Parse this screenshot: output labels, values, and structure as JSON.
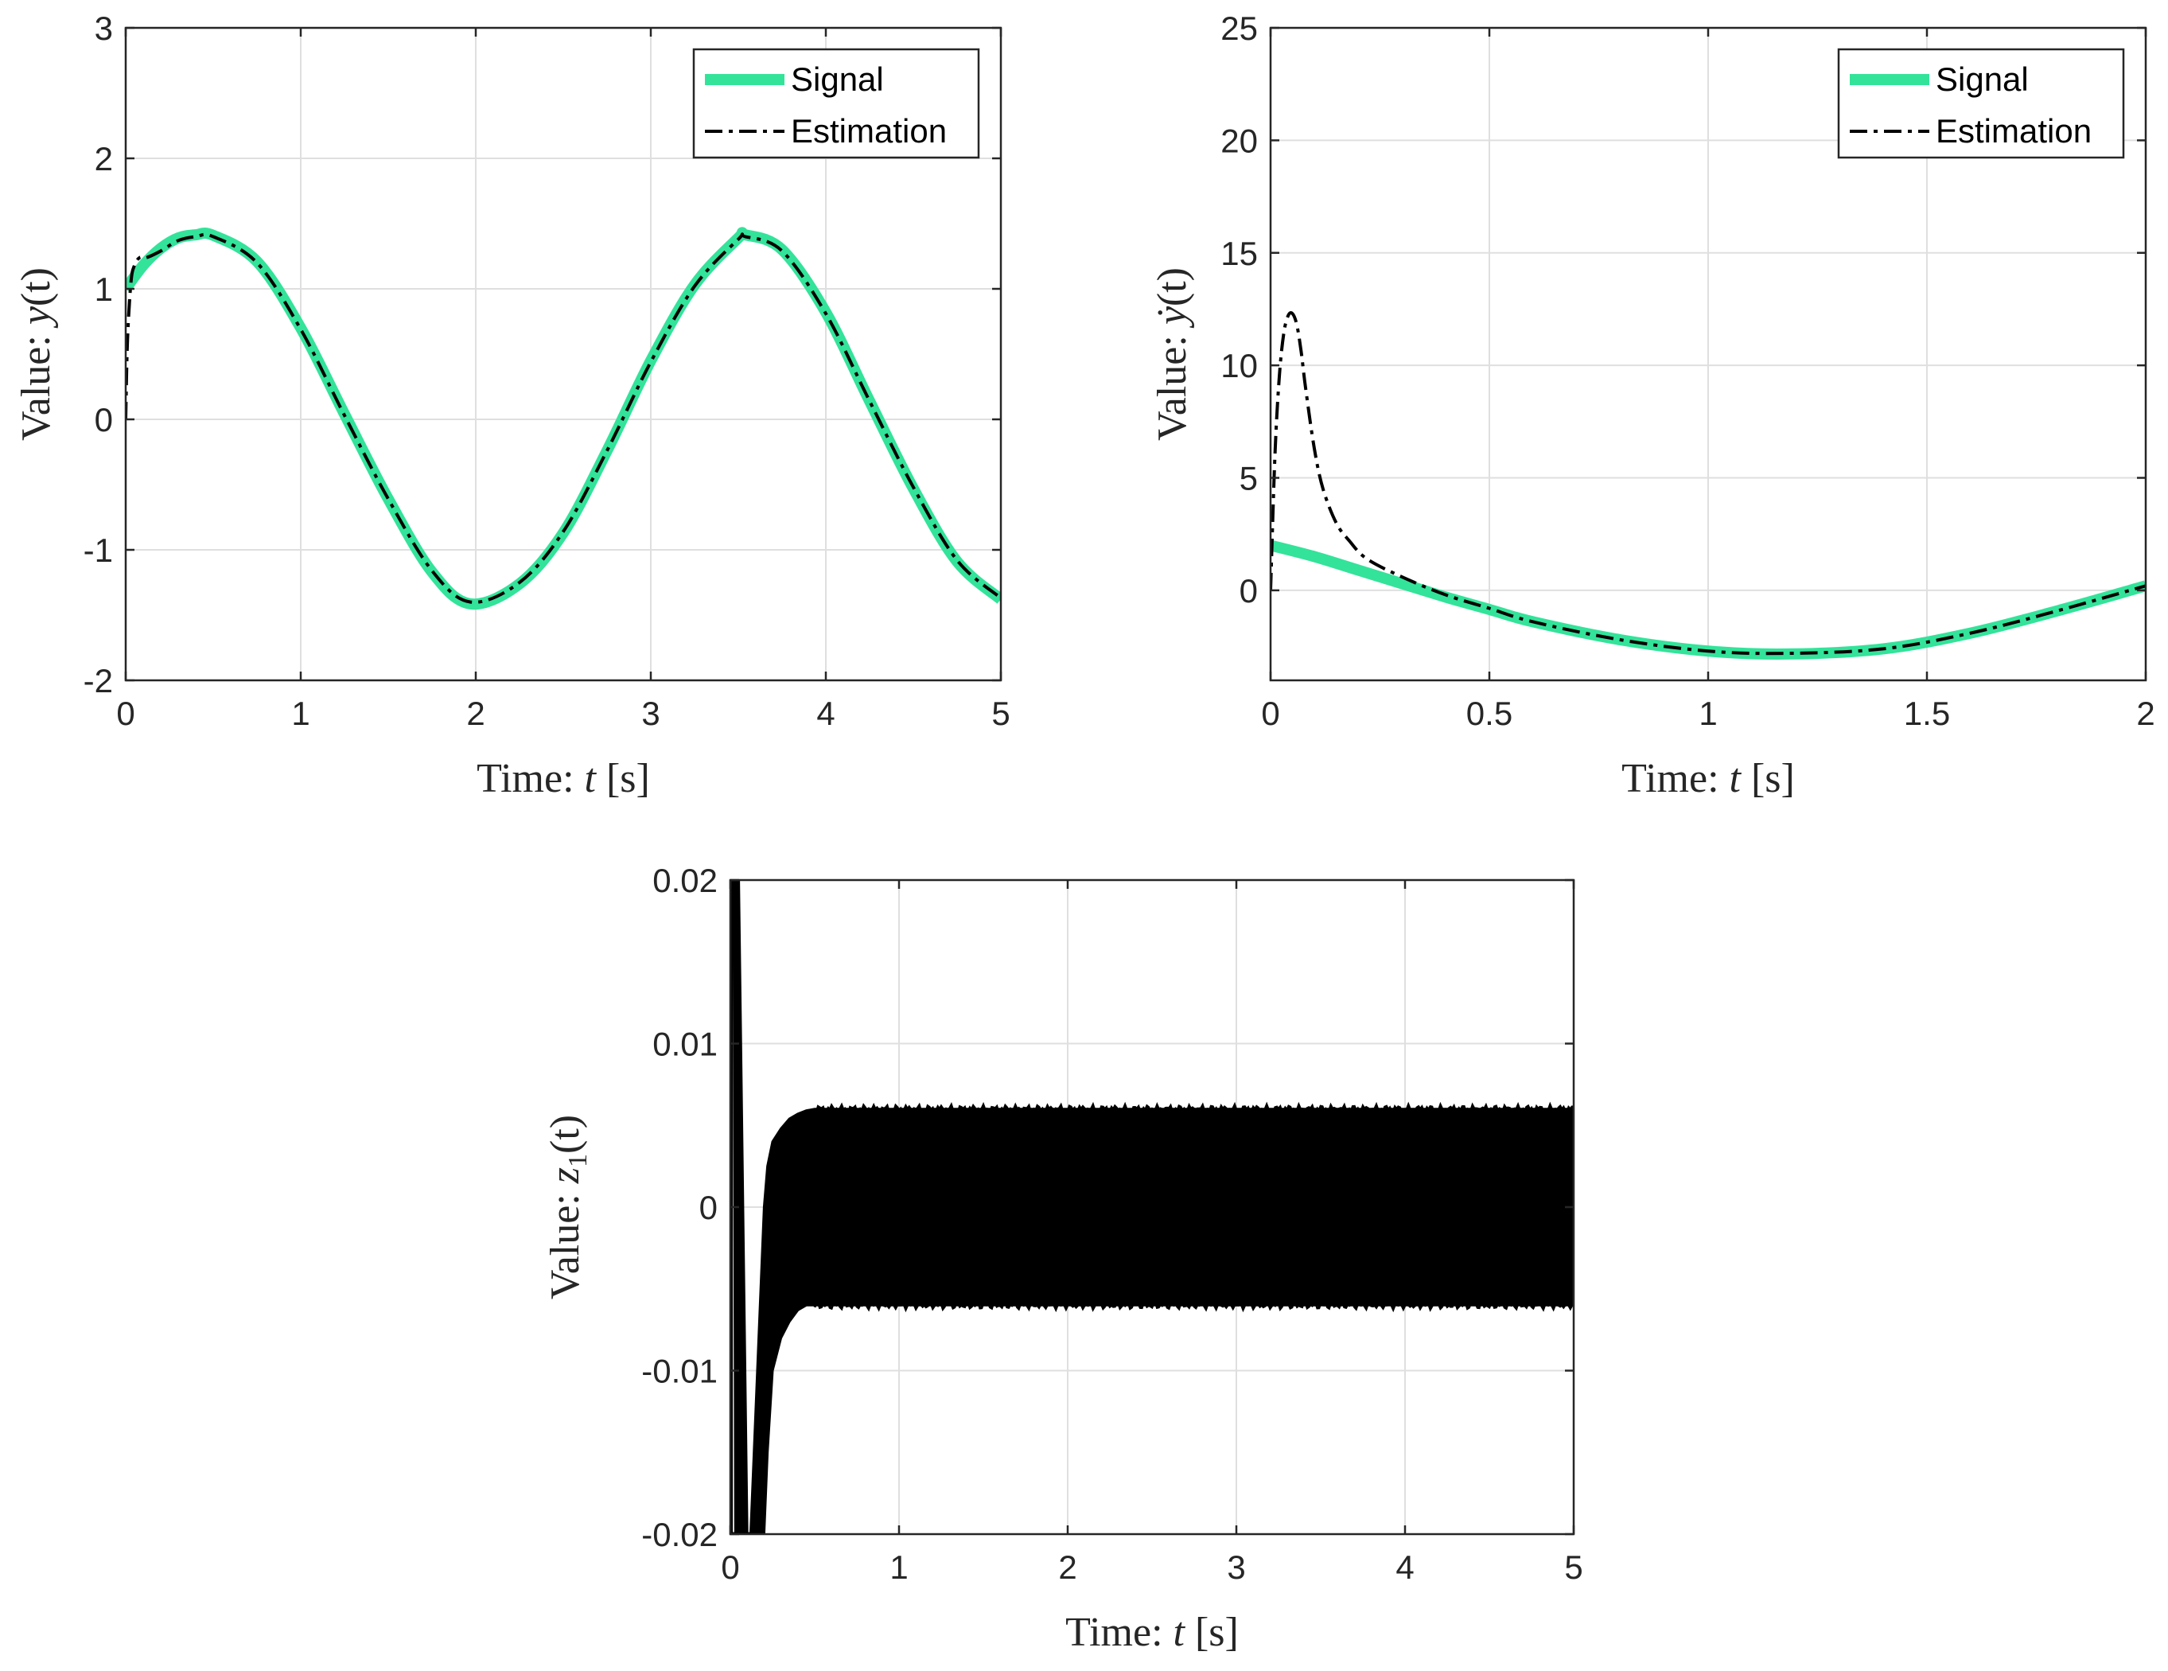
{
  "colors": {
    "signal": "#33e39a",
    "estimation": "#000000",
    "axes": "#262626",
    "grid": "#dfdfdf"
  },
  "chart_data": [
    {
      "type": "line",
      "xlabel": "Time: t [s]",
      "ylabel": "Value: y(t)",
      "xlim": [
        0,
        5
      ],
      "ylim": [
        -2,
        3
      ],
      "xticks": [
        "0",
        "1",
        "2",
        "3",
        "4",
        "5"
      ],
      "yticks": [
        "-2",
        "-1",
        "0",
        "1",
        "2",
        "3"
      ],
      "grid": true,
      "legend_position": "top-right",
      "series": [
        {
          "name": "Signal",
          "style": "solid-thick",
          "x": [
            0,
            0.1,
            0.2,
            0.3,
            0.4,
            0.5,
            0.75,
            1.0,
            1.25,
            1.5,
            1.75,
            1.97,
            2.25,
            2.5,
            2.75,
            3.0,
            3.25,
            3.5,
            3.54,
            3.75,
            4.0,
            4.25,
            4.5,
            4.75,
            5.0
          ],
          "y": [
            1.0,
            1.18,
            1.31,
            1.39,
            1.414,
            1.41,
            1.21,
            0.7,
            0.04,
            -0.61,
            -1.17,
            -1.414,
            -1.26,
            -0.87,
            -0.24,
            0.45,
            1.03,
            1.39,
            1.414,
            1.3,
            0.82,
            0.14,
            -0.53,
            -1.09,
            -1.38
          ]
        },
        {
          "name": "Estimation",
          "style": "dash-dot",
          "x": [
            0,
            0.01,
            0.03,
            0.05,
            0.08,
            0.12,
            0.2,
            0.3,
            0.4,
            0.5,
            0.75,
            1.0,
            1.25,
            1.5,
            1.75,
            1.97,
            2.25,
            2.5,
            2.75,
            3.0,
            3.25,
            3.5,
            3.54,
            3.75,
            4.0,
            4.25,
            4.5,
            4.75,
            5.0
          ],
          "y": [
            0,
            0.6,
            1.05,
            1.18,
            1.24,
            1.24,
            1.29,
            1.37,
            1.4,
            1.4,
            1.2,
            0.69,
            0.03,
            -0.61,
            -1.16,
            -1.4,
            -1.25,
            -0.86,
            -0.24,
            0.44,
            1.02,
            1.38,
            1.4,
            1.29,
            0.81,
            0.14,
            -0.52,
            -1.08,
            -1.37
          ]
        }
      ]
    },
    {
      "type": "line",
      "xlabel": "Time: t [s]",
      "ylabel": "Value: ẏ(t)",
      "xlim": [
        0,
        2
      ],
      "ylim": [
        -4,
        25
      ],
      "xticks": [
        "0",
        "0.5",
        "1",
        "1.5",
        "2"
      ],
      "yticks": [
        "0",
        "5",
        "10",
        "15",
        "20",
        "25"
      ],
      "grid": true,
      "legend_position": "top-right",
      "series": [
        {
          "name": "Signal",
          "style": "solid-thick",
          "x": [
            0,
            0.1,
            0.2,
            0.3,
            0.4,
            0.5,
            0.6,
            0.8,
            1.0,
            1.18,
            1.4,
            1.6,
            1.8,
            2.0
          ],
          "y": [
            2.0,
            1.5,
            0.9,
            0.3,
            -0.3,
            -0.85,
            -1.4,
            -2.2,
            -2.7,
            -2.83,
            -2.6,
            -1.9,
            -0.9,
            0.2
          ]
        },
        {
          "name": "Estimation",
          "style": "dash-dot",
          "x": [
            0,
            0.01,
            0.02,
            0.03,
            0.04,
            0.05,
            0.06,
            0.07,
            0.08,
            0.1,
            0.12,
            0.15,
            0.18,
            0.22,
            0.3,
            0.4,
            0.5,
            0.6,
            0.8,
            1.0,
            1.18,
            1.4,
            1.6,
            1.8,
            2.0
          ],
          "y": [
            0,
            6.0,
            9.5,
            11.4,
            12.2,
            12.3,
            11.8,
            10.6,
            9.0,
            6.3,
            4.5,
            3.0,
            2.2,
            1.4,
            0.6,
            -0.2,
            -0.8,
            -1.4,
            -2.2,
            -2.7,
            -2.8,
            -2.6,
            -1.9,
            -0.9,
            0.2
          ]
        }
      ]
    },
    {
      "type": "line",
      "xlabel": "Time: t [s]",
      "ylabel": "Value: z1(t)",
      "xlim": [
        0,
        5
      ],
      "ylim": [
        -0.02,
        0.02
      ],
      "xticks": [
        "0",
        "1",
        "2",
        "3",
        "4",
        "5"
      ],
      "yticks": [
        "-0.02",
        "-0.01",
        "0",
        "0.01",
        "0.02"
      ],
      "grid": true,
      "series": [
        {
          "name": "",
          "style": "solid-thin-chattering",
          "x": [
            0,
            0.02,
            0.03,
            0.05,
            0.1,
            0.12,
            0.14,
            0.16,
            0.18,
            0.2,
            0.22,
            0.25,
            0.3,
            0.35,
            0.4,
            0.45,
            0.5,
            5.0
          ],
          "y": [
            0.02,
            0.02,
            -0.02,
            -0.02,
            -0.02,
            -0.02,
            -0.02,
            -0.02,
            -0.02,
            -0.02,
            -0.015,
            -0.01,
            -0.008,
            -0.007,
            -0.0063,
            -0.006,
            -0.006,
            -0.006
          ],
          "upper_envelope": [
            0.02,
            0.02,
            0.02,
            0.02,
            -0.02,
            -0.02,
            -0.015,
            -0.01,
            -0.005,
            0.0,
            0.0025,
            0.004,
            0.0048,
            0.0054,
            0.0057,
            0.0059,
            0.006,
            0.006
          ],
          "band_amplitude": 0.006
        }
      ]
    }
  ],
  "legends": [
    {
      "entries": [
        "Signal",
        "Estimation"
      ]
    },
    {
      "entries": [
        "Signal",
        "Estimation"
      ]
    }
  ],
  "labels": {
    "p1_xlabel": {
      "pre": "Time: ",
      "var": "t",
      "post": " [s]"
    },
    "p1_ylabel": {
      "pre": "Value: ",
      "var": "y",
      "post": "(t)"
    },
    "p2_xlabel": {
      "pre": "Time: ",
      "var": "t",
      "post": " [s]"
    },
    "p2_ylabel": {
      "pre": "Value: ",
      "var": "ẏ",
      "post": "(t)"
    },
    "p3_xlabel": {
      "pre": "Time: ",
      "var": "t",
      "post": " [s]"
    },
    "p3_ylabel": {
      "pre": "Value: ",
      "var": "z",
      "sub": "1",
      "post": "(t)"
    }
  }
}
